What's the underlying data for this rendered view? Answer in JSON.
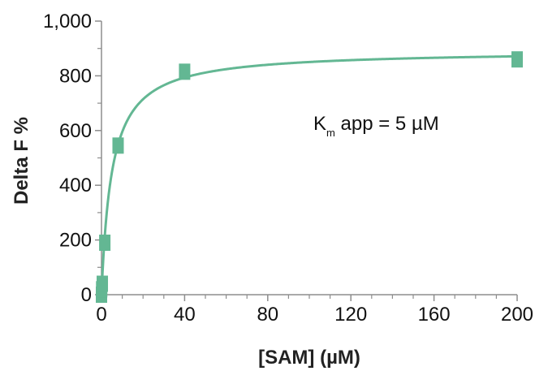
{
  "chart_data": {
    "type": "scatter",
    "xlabel": "[SAM] (µM)",
    "ylabel": "Delta F %",
    "xlim": [
      0,
      200
    ],
    "ylim": [
      0,
      1000
    ],
    "x_ticks": [
      0,
      40,
      80,
      120,
      160,
      200
    ],
    "x_tick_labels": [
      "0",
      "40",
      "80",
      "120",
      "160",
      "200"
    ],
    "x_minor_ticks": [
      10,
      20,
      30,
      50,
      60,
      70,
      90,
      100,
      110,
      130,
      140,
      150,
      170,
      180,
      190
    ],
    "y_ticks": [
      0,
      200,
      400,
      600,
      800,
      1000
    ],
    "y_tick_labels": [
      "0",
      "200",
      "400",
      "600",
      "800",
      "1,000"
    ],
    "y_minor_ticks": [
      100,
      300,
      500,
      700,
      900
    ],
    "grid": false,
    "series": [
      {
        "points": [
          {
            "x": 0,
            "y": 0
          },
          {
            "x": 0.1,
            "y": 20
          },
          {
            "x": 0.4,
            "y": 40
          },
          {
            "x": 1.6,
            "y": 190
          },
          {
            "x": 8,
            "y": 545
          },
          {
            "x": 40,
            "y": 815
          },
          {
            "x": 200,
            "y": 860
          }
        ],
        "marker_color": "#63b793"
      }
    ],
    "fit_curve": {
      "model": "michaelis-menten",
      "vmax": 893,
      "km": 5,
      "color": "#63b793"
    },
    "annotation": {
      "main_prefix": "K",
      "subscript": "m",
      "main_suffix": " app = 5 µM"
    }
  }
}
